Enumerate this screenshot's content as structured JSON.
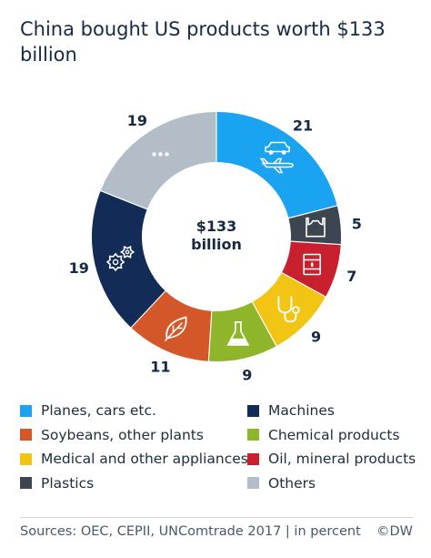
{
  "chart_data": {
    "type": "pie",
    "donut": true,
    "title": "China bought US products worth $133 billion",
    "center_label": "$133 billion",
    "center_lines": [
      "$133",
      "billion"
    ],
    "unit": "percent",
    "categories": [
      "Planes, cars etc.",
      "Plastics",
      "Oil, mineral products",
      "Medical and other appliances",
      "Chemical products",
      "Soybeans, other plants",
      "Machines",
      "Others"
    ],
    "values": [
      21,
      5,
      7,
      9,
      9,
      11,
      19,
      19
    ],
    "slice_labels": [
      "21",
      "5",
      "7",
      "9",
      "9",
      "11",
      "19",
      "19"
    ],
    "colors": [
      "#1aa3f0",
      "#3c4550",
      "#c8202f",
      "#f2c414",
      "#8fb52a",
      "#d4572a",
      "#132c57",
      "#b3bdc7"
    ],
    "icons": [
      "plane-car-icon",
      "plastic-bag-icon",
      "oil-barrel-icon",
      "stethoscope-icon",
      "flask-icon",
      "leaf-icon",
      "gears-icon",
      "ellipsis-icon"
    ],
    "legend": [
      {
        "label": "Planes, cars etc.",
        "color": "#1aa3f0"
      },
      {
        "label": "Machines",
        "color": "#132c57"
      },
      {
        "label": "Soybeans, other plants",
        "color": "#d4572a"
      },
      {
        "label": "Chemical products",
        "color": "#8fb52a"
      },
      {
        "label": "Medical and other appliances",
        "color": "#f2c414"
      },
      {
        "label": "Oil, mineral products",
        "color": "#c8202f"
      },
      {
        "label": "Plastics",
        "color": "#3c4550"
      },
      {
        "label": "Others",
        "color": "#b3bdc7"
      }
    ],
    "legend_placement": "bottom, two columns"
  },
  "footer": {
    "source": "Sources: OEC, CEPII, UNComtrade 2017 | in percent",
    "brand": "©DW"
  }
}
